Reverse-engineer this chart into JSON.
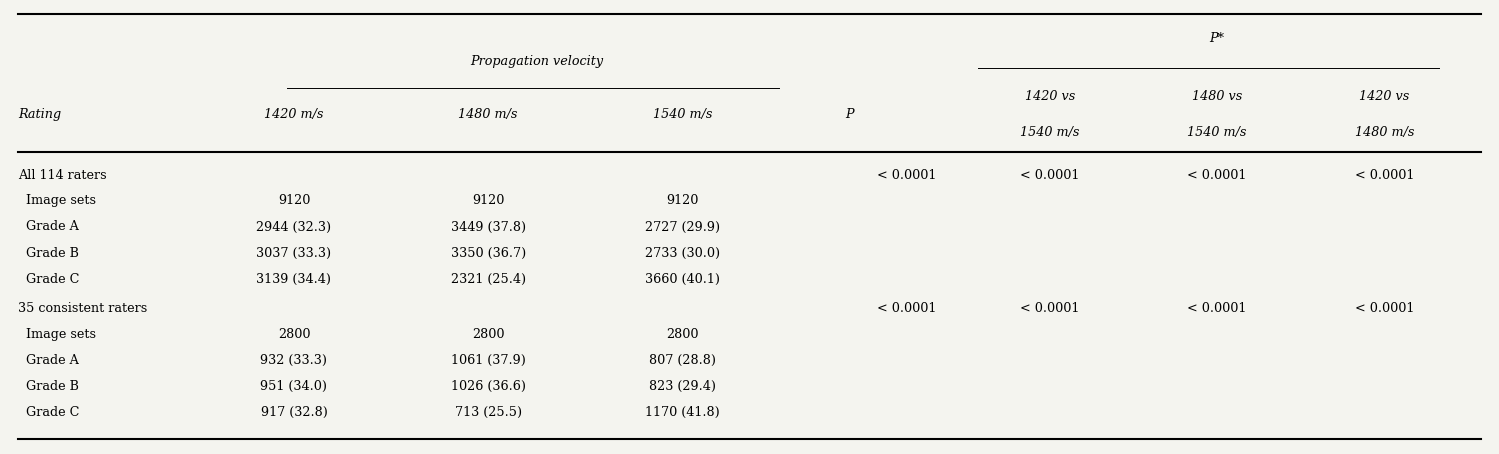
{
  "section1_label": "All 114 raters",
  "section1_P": "< 0.0001",
  "section1_pstar": [
    "< 0.0001",
    "< 0.0001",
    "< 0.0001"
  ],
  "section1_rows": [
    {
      "label": "  Image sets",
      "v1420": "9120",
      "v1480": "9120",
      "v1540": "9120"
    },
    {
      "label": "  Grade A",
      "v1420": "2944 (32.3)",
      "v1480": "3449 (37.8)",
      "v1540": "2727 (29.9)"
    },
    {
      "label": "  Grade B",
      "v1420": "3037 (33.3)",
      "v1480": "3350 (36.7)",
      "v1540": "2733 (30.0)"
    },
    {
      "label": "  Grade C",
      "v1420": "3139 (34.4)",
      "v1480": "2321 (25.4)",
      "v1540": "3660 (40.1)"
    }
  ],
  "section2_label": "35 consistent raters",
  "section2_P": "< 0.0001",
  "section2_pstar": [
    "< 0.0001",
    "< 0.0001",
    "< 0.0001"
  ],
  "section2_rows": [
    {
      "label": "  Image sets",
      "v1420": "2800",
      "v1480": "2800",
      "v1540": "2800"
    },
    {
      "label": "  Grade A",
      "v1420": "932 (33.3)",
      "v1480": "1061 (37.9)",
      "v1540": "807 (28.8)"
    },
    {
      "label": "  Grade B",
      "v1420": "951 (34.0)",
      "v1480": "1026 (36.6)",
      "v1540": "823 (29.4)"
    },
    {
      "label": "  Grade C",
      "v1420": "917 (32.8)",
      "v1480": "713 (25.5)",
      "v1540": "1170 (41.8)"
    }
  ],
  "col_x": {
    "rating": 0.01,
    "v1420": 0.195,
    "v1480": 0.325,
    "v1540": 0.455,
    "P": 0.567,
    "p1": 0.663,
    "p2": 0.775,
    "p3": 0.887
  },
  "font_size": 9.2,
  "bg_color": "#f4f4ef"
}
